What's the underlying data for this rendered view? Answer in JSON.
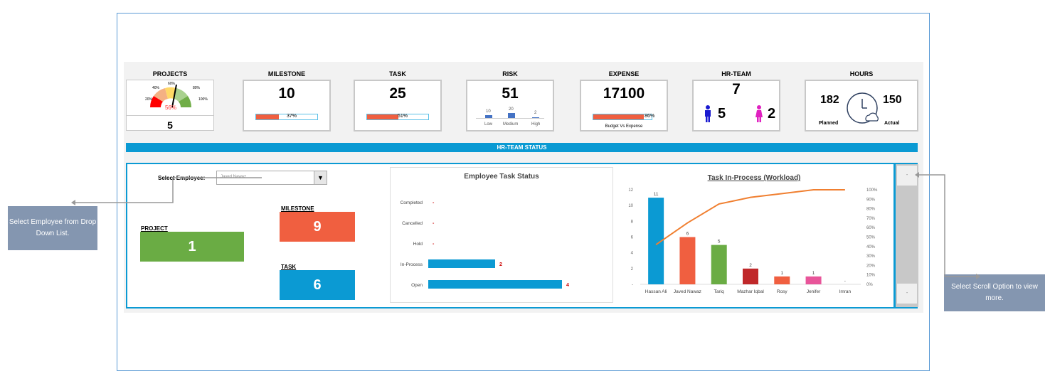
{
  "kpis": {
    "projects": {
      "title": "PROJECTS",
      "value": "5",
      "gauge_pct": "56%",
      "gauge_labels": [
        "20%",
        "40%",
        "60%",
        "80%",
        "100%"
      ]
    },
    "milestone": {
      "title": "MILESTONE",
      "value": "10",
      "progress": 37,
      "progress_label": "37%"
    },
    "task": {
      "title": "TASK",
      "value": "25",
      "progress": 51,
      "progress_label": "51%"
    },
    "risk": {
      "title": "RISK",
      "value": "51",
      "bars": [
        {
          "label": "Low",
          "value": "10"
        },
        {
          "label": "Medium",
          "value": "20"
        },
        {
          "label": "High",
          "value": "2"
        }
      ]
    },
    "expense": {
      "title": "EXPENSE",
      "value": "17100",
      "progress": 86,
      "progress_label": "86%",
      "caption": "Budget Vs Expense"
    },
    "hr_team": {
      "title": "HR-TEAM",
      "value": "7",
      "male": "5",
      "female": "2"
    },
    "hours": {
      "title": "HOURS",
      "planned": "182",
      "actual": "150",
      "planned_label": "Planned",
      "actual_label": "Actual"
    }
  },
  "banner": "HR-TEAM STATUS",
  "employee": {
    "select_label": "Select Employee:",
    "selected": "Javed Nawaz",
    "project_label": "PROJECT",
    "project": "1",
    "milestone_label": "MILESTONE",
    "milestone": "9",
    "task_label": "TASK",
    "task": "6"
  },
  "callouts": {
    "left": "Select Employee from Drop Down List.",
    "right": "Select Scroll Option to view more."
  },
  "scroll": {
    "up": "-",
    "down": "-"
  },
  "colors": {
    "accent": "#0b9ad3",
    "orange": "#f05f40",
    "green": "#6aac44"
  },
  "chart_data": [
    {
      "type": "bar",
      "orientation": "horizontal",
      "title": "Employee Task Status",
      "categories": [
        "Completed",
        "Cancelled",
        "Hold",
        "In-Process",
        "Open"
      ],
      "values": [
        0,
        0,
        0,
        2,
        4
      ],
      "data_labels": [
        "-",
        "-",
        "-",
        "2",
        "4"
      ]
    },
    {
      "type": "bar+line",
      "title": "Task In-Process (Workload)",
      "categories": [
        "Hassan Ali",
        "Javed Nawaz",
        "Tariq",
        "Mazhar Iqbal",
        "Rosy",
        "Jenifer",
        "Imran"
      ],
      "series": [
        {
          "type": "bar",
          "values": [
            11,
            6,
            5,
            2,
            1,
            1,
            0
          ],
          "data_labels": [
            "11",
            "6",
            "5",
            "2",
            "1",
            "1",
            "-"
          ],
          "colors": [
            "#0b9ad3",
            "#f05f40",
            "#6aac44",
            "#c0282a",
            "#f05f40",
            "#e8559a",
            "#999999"
          ]
        },
        {
          "type": "line",
          "axis": "right",
          "values": [
            42,
            65,
            85,
            92,
            96,
            100,
            100
          ],
          "color": "#f07f30"
        }
      ],
      "ylim": [
        0,
        12
      ],
      "yticks": [
        "-",
        "2",
        "4",
        "6",
        "8",
        "10",
        "12"
      ],
      "y2lim": [
        0,
        100
      ],
      "y2ticks": [
        "0%",
        "10%",
        "20%",
        "30%",
        "40%",
        "50%",
        "60%",
        "70%",
        "80%",
        "90%",
        "100%"
      ]
    }
  ]
}
